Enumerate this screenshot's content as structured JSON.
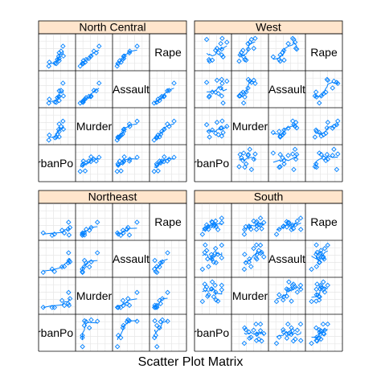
{
  "chart_data": {
    "type": "scatter",
    "title": "Scatter Plot Matrix",
    "variables": [
      "UrbanPop",
      "Murder",
      "Assault",
      "Rape"
    ],
    "diagonal_labels": [
      "rbanPo",
      "Murder",
      "Assault",
      "Rape"
    ],
    "grid": true,
    "point_color": "#0080ff",
    "line_color": "#0080ff",
    "strip_color": "#ffe5cc",
    "panels": [
      {
        "strip": "North Central",
        "points": [
          {
            "UrbanPop": 66,
            "Murder": 10.4,
            "Assault": 174,
            "Rape": 25.8
          },
          {
            "UrbanPop": 65,
            "Murder": 7.2,
            "Assault": 113,
            "Rape": 21.0
          },
          {
            "UrbanPop": 57,
            "Murder": 2.2,
            "Assault": 56,
            "Rape": 11.3
          },
          {
            "UrbanPop": 66,
            "Murder": 6.0,
            "Assault": 115,
            "Rape": 18.0
          },
          {
            "UrbanPop": 74,
            "Murder": 12.1,
            "Assault": 255,
            "Rape": 35.1
          },
          {
            "UrbanPop": 66,
            "Murder": 2.7,
            "Assault": 72,
            "Rape": 14.9
          },
          {
            "UrbanPop": 70,
            "Murder": 9.0,
            "Assault": 178,
            "Rape": 28.2
          },
          {
            "UrbanPop": 62,
            "Murder": 4.3,
            "Assault": 102,
            "Rape": 16.5
          },
          {
            "UrbanPop": 44,
            "Murder": 0.8,
            "Assault": 45,
            "Rape": 7.3
          },
          {
            "UrbanPop": 75,
            "Murder": 7.3,
            "Assault": 120,
            "Rape": 21.4
          },
          {
            "UrbanPop": 45,
            "Murder": 3.8,
            "Assault": 86,
            "Rape": 12.8
          },
          {
            "UrbanPop": 60,
            "Murder": 2.6,
            "Assault": 53,
            "Rape": 10.8
          }
        ]
      },
      {
        "strip": "West",
        "points": [
          {
            "UrbanPop": 48,
            "Murder": 10.0,
            "Assault": 263,
            "Rape": 44.5
          },
          {
            "UrbanPop": 80,
            "Murder": 8.1,
            "Assault": 294,
            "Rape": 31.0
          },
          {
            "UrbanPop": 91,
            "Murder": 9.0,
            "Assault": 276,
            "Rape": 40.6
          },
          {
            "UrbanPop": 78,
            "Murder": 7.9,
            "Assault": 204,
            "Rape": 38.7
          },
          {
            "UrbanPop": 83,
            "Murder": 5.3,
            "Assault": 46,
            "Rape": 20.2
          },
          {
            "UrbanPop": 54,
            "Murder": 2.6,
            "Assault": 120,
            "Rape": 14.2
          },
          {
            "UrbanPop": 53,
            "Murder": 6.0,
            "Assault": 109,
            "Rape": 16.4
          },
          {
            "UrbanPop": 81,
            "Murder": 12.2,
            "Assault": 252,
            "Rape": 46.0
          },
          {
            "UrbanPop": 70,
            "Murder": 11.4,
            "Assault": 285,
            "Rape": 32.1
          },
          {
            "UrbanPop": 67,
            "Murder": 4.9,
            "Assault": 159,
            "Rape": 29.3
          },
          {
            "UrbanPop": 80,
            "Murder": 3.2,
            "Assault": 120,
            "Rape": 22.9
          },
          {
            "UrbanPop": 73,
            "Murder": 4.0,
            "Assault": 145,
            "Rape": 26.2
          },
          {
            "UrbanPop": 60,
            "Murder": 6.8,
            "Assault": 161,
            "Rape": 15.6
          }
        ]
      },
      {
        "strip": "Northeast",
        "points": [
          {
            "UrbanPop": 77,
            "Murder": 3.3,
            "Assault": 110,
            "Rape": 11.1
          },
          {
            "UrbanPop": 51,
            "Murder": 2.1,
            "Assault": 83,
            "Rape": 7.8
          },
          {
            "UrbanPop": 85,
            "Murder": 4.4,
            "Assault": 149,
            "Rape": 16.3
          },
          {
            "UrbanPop": 56,
            "Murder": 2.1,
            "Assault": 57,
            "Rape": 9.5
          },
          {
            "UrbanPop": 89,
            "Murder": 7.4,
            "Assault": 159,
            "Rape": 18.8
          },
          {
            "UrbanPop": 86,
            "Murder": 11.1,
            "Assault": 254,
            "Rape": 26.1
          },
          {
            "UrbanPop": 72,
            "Murder": 6.3,
            "Assault": 106,
            "Rape": 14.9
          },
          {
            "UrbanPop": 87,
            "Murder": 3.4,
            "Assault": 174,
            "Rape": 8.3
          },
          {
            "UrbanPop": 32,
            "Murder": 2.2,
            "Assault": 48,
            "Rape": 11.2
          }
        ]
      },
      {
        "strip": "South",
        "points": [
          {
            "UrbanPop": 58,
            "Murder": 13.2,
            "Assault": 236,
            "Rape": 21.2
          },
          {
            "UrbanPop": 50,
            "Murder": 8.8,
            "Assault": 190,
            "Rape": 19.5
          },
          {
            "UrbanPop": 72,
            "Murder": 5.9,
            "Assault": 238,
            "Rape": 15.8
          },
          {
            "UrbanPop": 80,
            "Murder": 15.4,
            "Assault": 335,
            "Rape": 31.9
          },
          {
            "UrbanPop": 60,
            "Murder": 17.4,
            "Assault": 211,
            "Rape": 25.8
          },
          {
            "UrbanPop": 52,
            "Murder": 9.7,
            "Assault": 109,
            "Rape": 16.3
          },
          {
            "UrbanPop": 66,
            "Murder": 15.4,
            "Assault": 249,
            "Rape": 22.2
          },
          {
            "UrbanPop": 67,
            "Murder": 11.3,
            "Assault": 300,
            "Rape": 27.8
          },
          {
            "UrbanPop": 44,
            "Murder": 16.1,
            "Assault": 259,
            "Rape": 17.1
          },
          {
            "UrbanPop": 45,
            "Murder": 13.0,
            "Assault": 337,
            "Rape": 16.1
          },
          {
            "UrbanPop": 68,
            "Murder": 6.6,
            "Assault": 151,
            "Rape": 20.0
          },
          {
            "UrbanPop": 48,
            "Murder": 14.4,
            "Assault": 279,
            "Rape": 22.5
          },
          {
            "UrbanPop": 59,
            "Murder": 13.2,
            "Assault": 188,
            "Rape": 26.9
          },
          {
            "UrbanPop": 80,
            "Murder": 12.7,
            "Assault": 201,
            "Rape": 25.5
          },
          {
            "UrbanPop": 63,
            "Murder": 8.5,
            "Assault": 156,
            "Rape": 20.7
          },
          {
            "UrbanPop": 39,
            "Murder": 5.7,
            "Assault": 81,
            "Rape": 9.3
          }
        ]
      }
    ]
  }
}
